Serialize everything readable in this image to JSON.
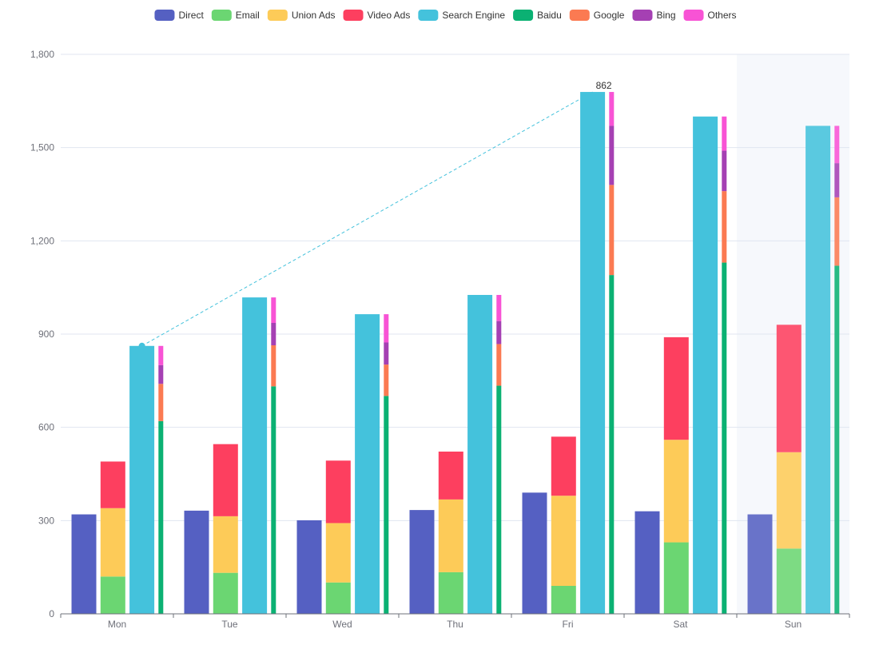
{
  "chart_data": {
    "type": "bar",
    "stacked": true,
    "categories": [
      "Mon",
      "Tue",
      "Wed",
      "Thu",
      "Fri",
      "Sat",
      "Sun"
    ],
    "ylim": [
      0,
      1800
    ],
    "yticks": [
      0,
      300,
      600,
      900,
      1200,
      1500,
      1800
    ],
    "grid": true,
    "legend_position": "top-center",
    "highlighted_category": "Sun",
    "series": [
      {
        "name": "Direct",
        "stack": "direct",
        "color": "#5470c6",
        "values": [
          320,
          332,
          301,
          334,
          390,
          330,
          320
        ]
      },
      {
        "name": "Email",
        "stack": "ad",
        "color": "#91cc75",
        "values": [
          120,
          132,
          101,
          134,
          90,
          230,
          210
        ]
      },
      {
        "name": "Union Ads",
        "stack": "ad",
        "color": "#fac858",
        "values": [
          220,
          182,
          191,
          234,
          290,
          330,
          310
        ]
      },
      {
        "name": "Video Ads",
        "stack": "ad",
        "color": "#ee6666",
        "values": [
          150,
          232,
          201,
          154,
          190,
          330,
          410
        ]
      },
      {
        "name": "Search Engine",
        "stack": "search",
        "color": "#73c0de",
        "values": [
          862,
          1018,
          964,
          1026,
          1679,
          1600,
          1570
        ]
      },
      {
        "name": "Baidu",
        "stack": "engine",
        "color": "#3ba272",
        "values": [
          620,
          732,
          701,
          734,
          1090,
          1130,
          1120
        ]
      },
      {
        "name": "Google",
        "stack": "engine",
        "color": "#fc8452",
        "values": [
          120,
          132,
          101,
          134,
          290,
          230,
          220
        ]
      },
      {
        "name": "Bing",
        "stack": "engine",
        "color": "#9a60b4",
        "values": [
          60,
          72,
          71,
          74,
          190,
          130,
          110
        ]
      },
      {
        "name": "Others",
        "stack": "engine",
        "color": "#ea7ccc",
        "values": [
          62,
          82,
          91,
          84,
          109,
          110,
          120
        ]
      }
    ],
    "markline": {
      "series": "Search Engine",
      "from_category": "Mon",
      "to_category": "Fri",
      "label": "862"
    }
  }
}
